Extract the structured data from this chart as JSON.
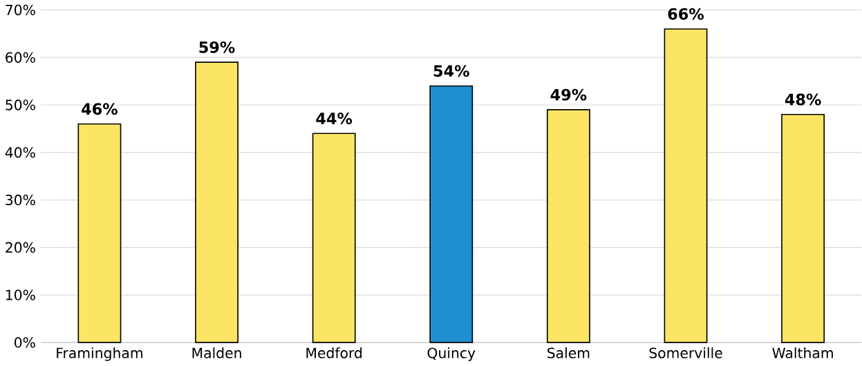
{
  "chart_data": {
    "type": "bar",
    "categories": [
      "Framingham",
      "Malden",
      "Medford",
      "Quincy",
      "Salem",
      "Somerville",
      "Waltham"
    ],
    "values": [
      46,
      59,
      44,
      54,
      49,
      66,
      48
    ],
    "colors": [
      "#fce564",
      "#fce564",
      "#fce564",
      "#1f8fcf",
      "#fce564",
      "#fce564",
      "#fce564"
    ],
    "value_labels": [
      "46%",
      "59%",
      "44%",
      "54%",
      "49%",
      "66%",
      "48%"
    ],
    "ylim": [
      0,
      70
    ],
    "yticks": [
      {
        "value": 0,
        "label": "0%"
      },
      {
        "value": 10,
        "label": "10%"
      },
      {
        "value": 20,
        "label": "20%"
      },
      {
        "value": 30,
        "label": "30%"
      },
      {
        "value": 40,
        "label": "40%"
      },
      {
        "value": 50,
        "label": "50%"
      },
      {
        "value": 60,
        "label": "60%"
      },
      {
        "value": 70,
        "label": "70%"
      }
    ],
    "grid": "y"
  }
}
